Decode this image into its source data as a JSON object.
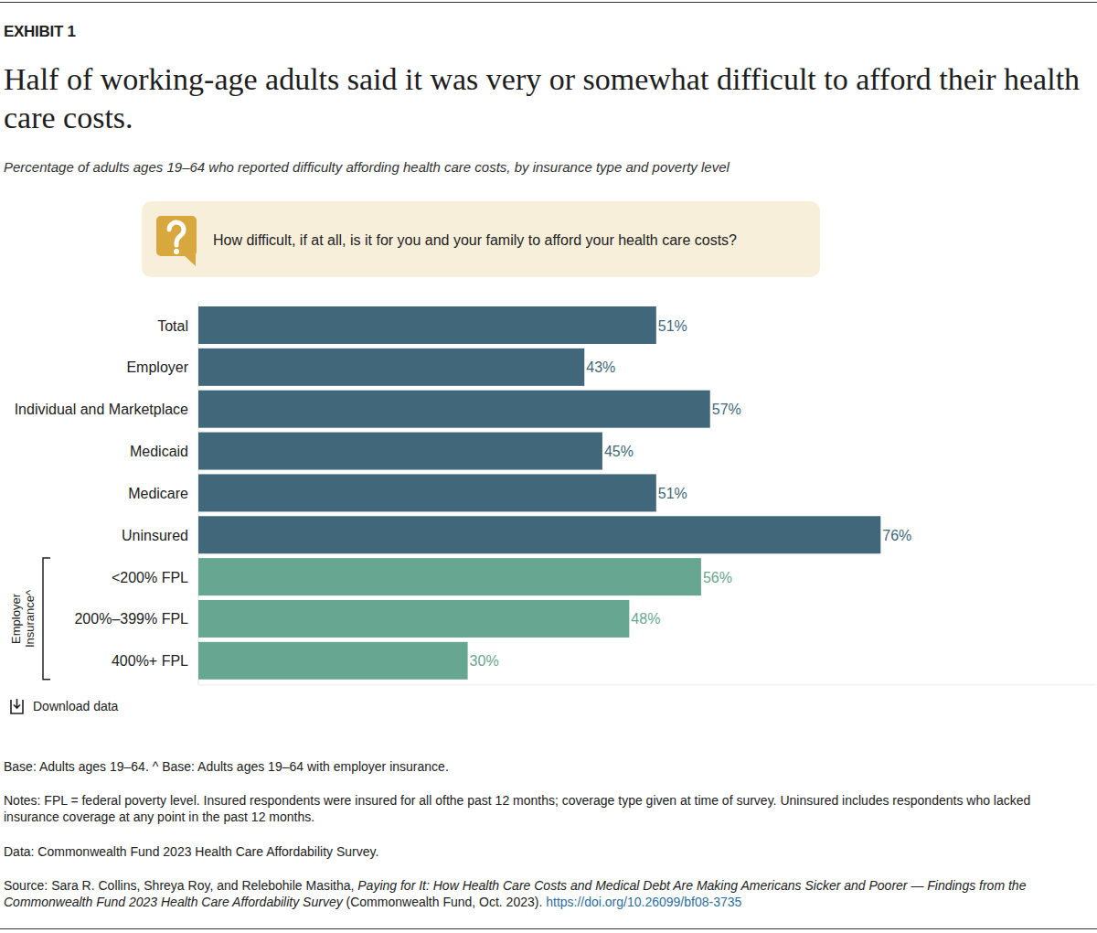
{
  "chart_data": {
    "type": "bar",
    "orientation": "horizontal",
    "exhibit": "EXHIBIT 1",
    "title": "Half of working-age adults said it was very or somewhat difficult to afford their health care costs.",
    "subtitle": "Percentage of adults ages 19–64 who reported difficulty affording health care costs, by insurance type and poverty level",
    "question": "How difficult, if at all, is it for you and your family to afford your health care costs?",
    "categories": [
      "Total",
      "Employer",
      "Individual and Marketplace",
      "Medicaid",
      "Medicare",
      "Uninsured",
      "<200% FPL",
      "200%–399% FPL",
      "400%+ FPL"
    ],
    "values": [
      51,
      43,
      57,
      45,
      51,
      76,
      56,
      48,
      30
    ],
    "value_labels": [
      "51%",
      "43%",
      "57%",
      "45%",
      "51%",
      "76%",
      "56%",
      "48%",
      "30%"
    ],
    "colors": [
      "#41687a",
      "#41687a",
      "#41687a",
      "#41687a",
      "#41687a",
      "#41687a",
      "#67a690",
      "#67a690",
      "#67a690"
    ],
    "group_label": "Employer Insurance^",
    "xlim": [
      0,
      100
    ],
    "tick_labels": false,
    "grid": false,
    "data_labels": true,
    "download": "Download data",
    "notes": [
      "Base: Adults ages 19–64. ^ Base: Adults ages 19–64 with employer insurance.",
      "Notes: FPL = federal poverty level. Insured respondents were insured for all ofthe past 12 months; coverage type given at time of survey. Uninsured includes respondents who lacked insurance coverage at any point in the past 12 months.",
      "Data: Commonwealth Fund 2023 Health Care Affordability Survey."
    ],
    "source": {
      "prefix": "Source: Sara R. Collins, Shreya Roy, and Relebohile Masitha, ",
      "publication": "Paying for It: How Health Care Costs and Medical Debt Are Making Americans Sicker and Poorer — Findings from the Commonwealth Fund 2023 Health Care Affordability Survey",
      "suffix": " (Commonwealth Fund, Oct. 2023). ",
      "link": "https://doi.org/10.26099/bf08-3735"
    }
  }
}
